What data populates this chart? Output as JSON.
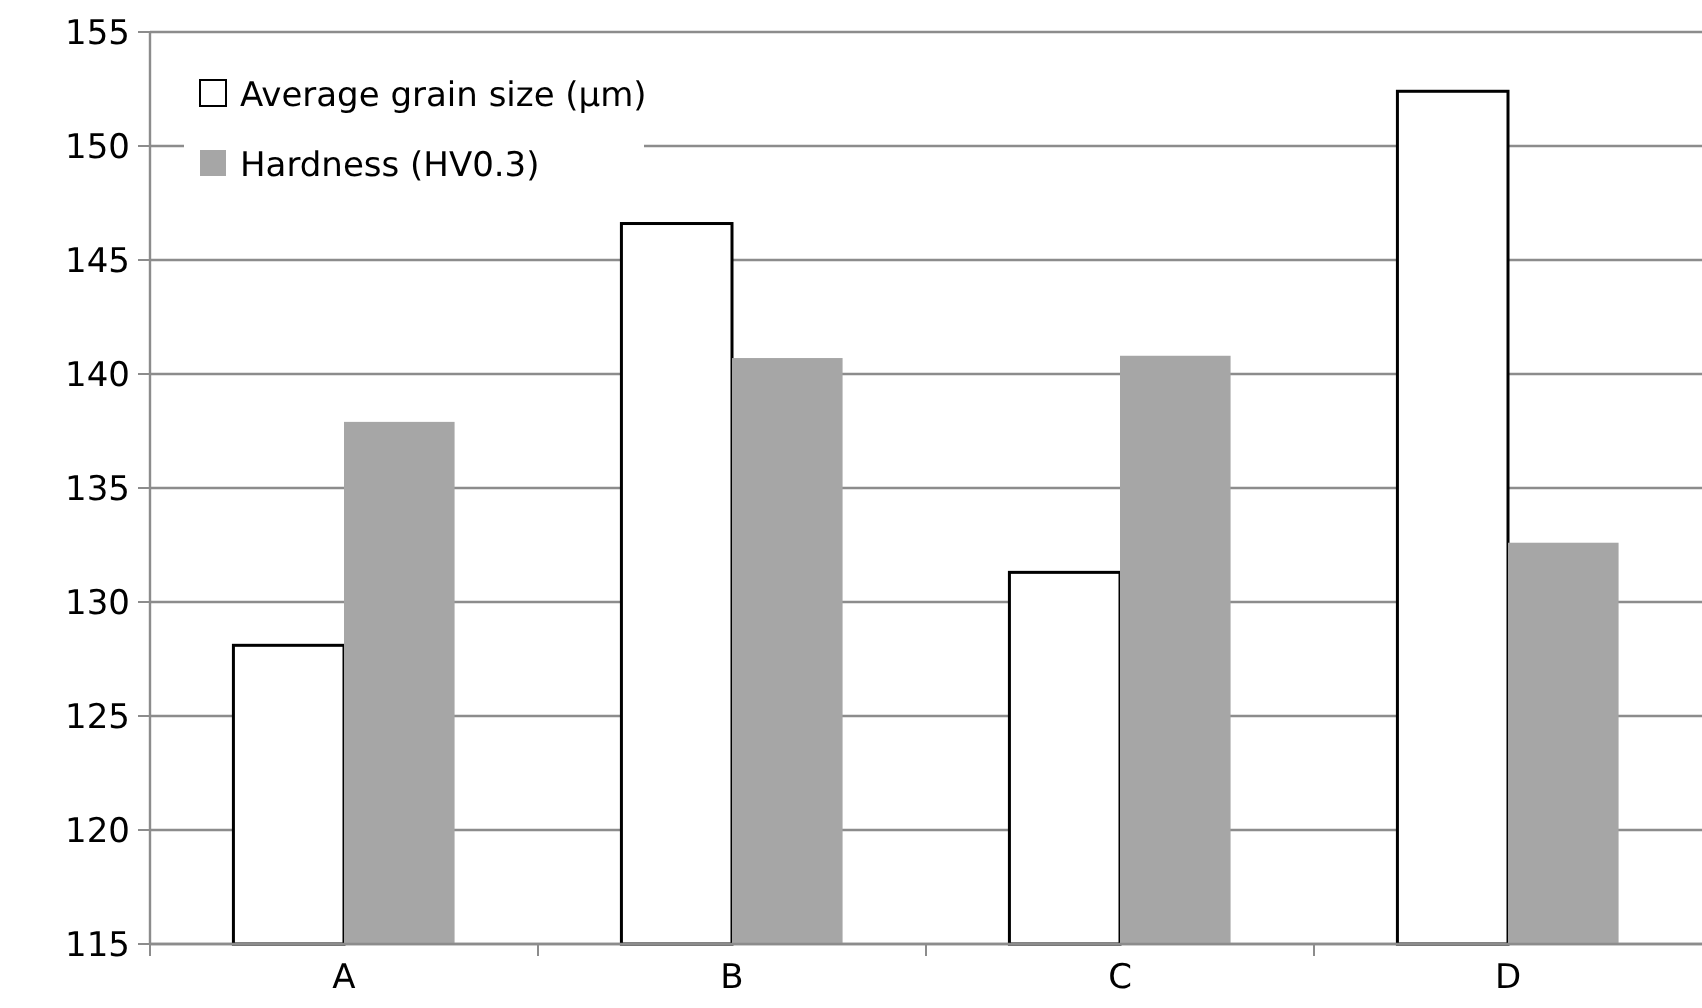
{
  "chart_data": {
    "type": "bar",
    "categories": [
      "A",
      "B",
      "C",
      "D"
    ],
    "series": [
      {
        "name": "Average grain size (μm)",
        "color": "#ffffff",
        "values": [
          128.1,
          146.6,
          131.3,
          152.4
        ]
      },
      {
        "name": "Hardness (HV0.3)",
        "color": "#a6a6a6",
        "values": [
          137.9,
          140.7,
          140.8,
          132.6
        ]
      }
    ],
    "ylim": [
      115,
      155
    ],
    "yticks": [
      115,
      120,
      125,
      130,
      135,
      140,
      145,
      150,
      155
    ],
    "grid": "y",
    "legend": "top left"
  }
}
